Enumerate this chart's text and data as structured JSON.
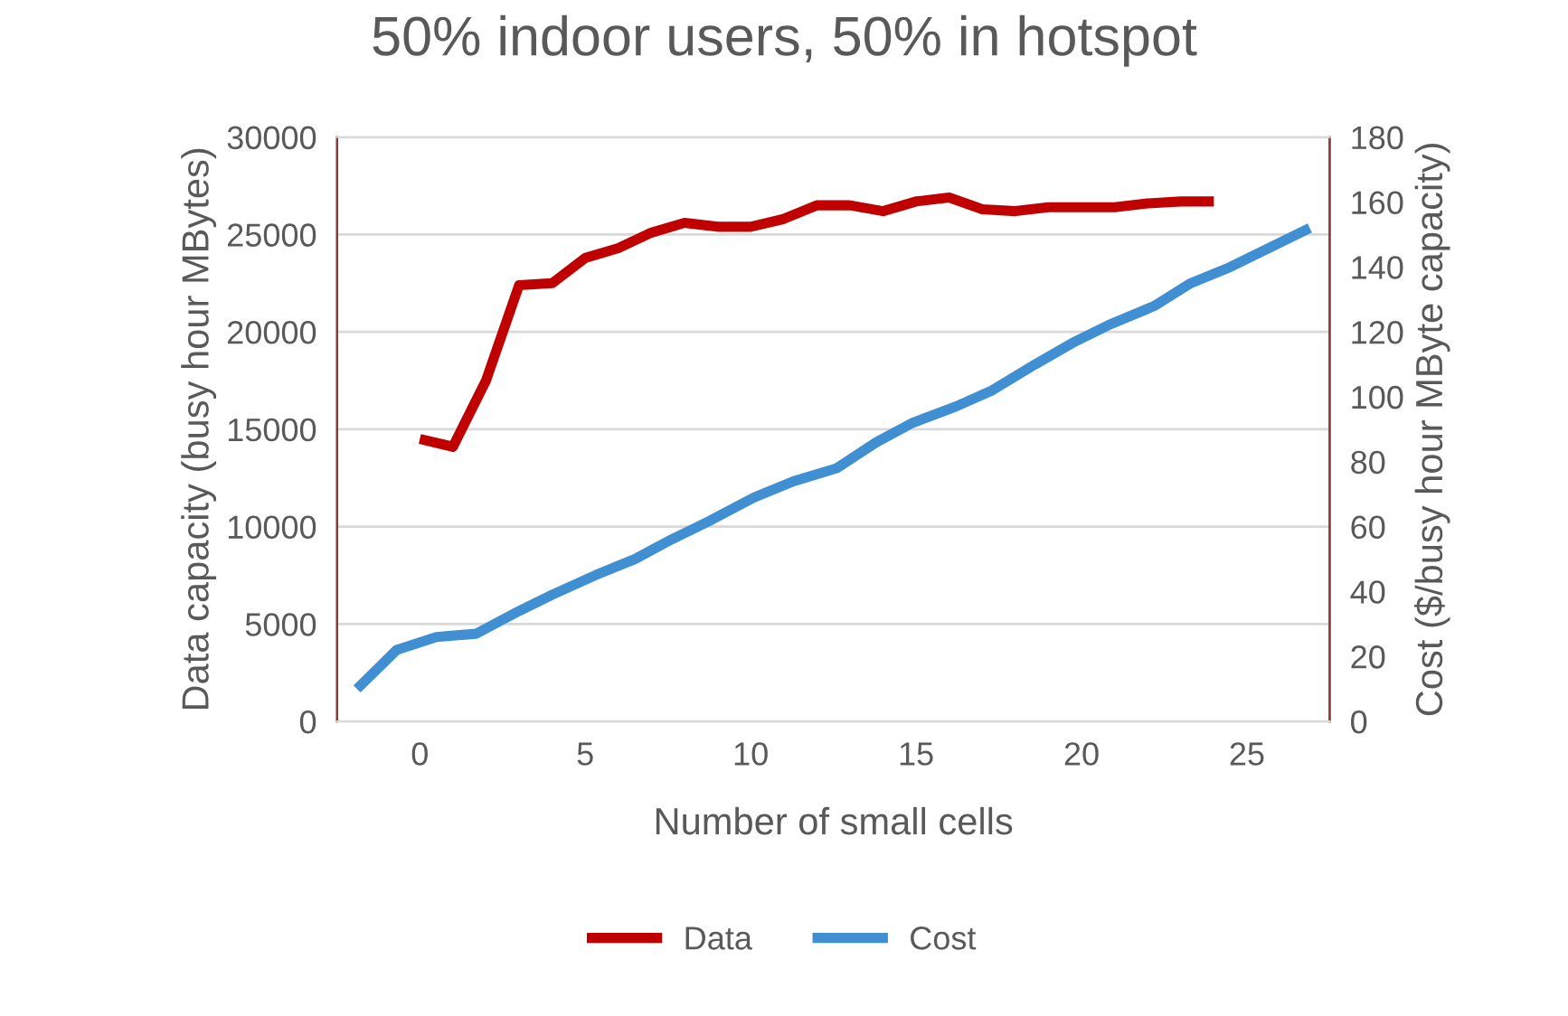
{
  "chart_data": {
    "type": "line",
    "title": "50% indoor users, 50% in hotspot",
    "xlabel": "Number of small cells",
    "ylabel": "Data capacity (busy hour MBytes)",
    "y2label": "Cost ($/busy hour MByte capacity)",
    "xlim": [
      -2.5,
      27.5
    ],
    "xticks": [
      0,
      5,
      10,
      15,
      20,
      25
    ],
    "ylim": [
      0,
      30000
    ],
    "yticks": [
      0,
      5000,
      10000,
      15000,
      20000,
      25000,
      30000
    ],
    "y2lim": [
      0,
      180
    ],
    "y2ticks": [
      0,
      20,
      40,
      60,
      80,
      100,
      120,
      140,
      160,
      180
    ],
    "grid": "y",
    "legend": "bottom",
    "marker": "none",
    "line_style": "solid",
    "series": [
      {
        "name": "Data",
        "color": "#c00000",
        "x": [
          0,
          1,
          2,
          3,
          4,
          5,
          6,
          7,
          8,
          9,
          10,
          11,
          12,
          13,
          14,
          15,
          16,
          17,
          18,
          19,
          20,
          21,
          22,
          23,
          24
        ],
        "values": [
          14500,
          14100,
          17500,
          22400,
          22500,
          23800,
          24300,
          25100,
          25600,
          25400,
          25400,
          25800,
          26500,
          26500,
          26200,
          26700,
          26900,
          26300,
          26200,
          26400,
          26400,
          26400,
          26600,
          26700,
          26700
        ]
      },
      {
        "name": "Cost",
        "color": "#3f8fd2",
        "axis": "y2",
        "x": [
          -1.9,
          -0.7,
          0.5,
          1.7,
          3.0,
          4.0,
          5.3,
          6.5,
          7.6,
          8.8,
          10.1,
          11.3,
          12.6,
          13.8,
          14.9,
          16.2,
          17.3,
          18.6,
          19.8,
          20.8,
          22.2,
          23.3,
          24.5,
          25.7,
          26.9
        ],
        "values": [
          10,
          22,
          26,
          27,
          34,
          39,
          45,
          50,
          56,
          62,
          69,
          74,
          78,
          86,
          92,
          97,
          102,
          110,
          117,
          122,
          128,
          135,
          140,
          146,
          152
        ]
      }
    ]
  }
}
